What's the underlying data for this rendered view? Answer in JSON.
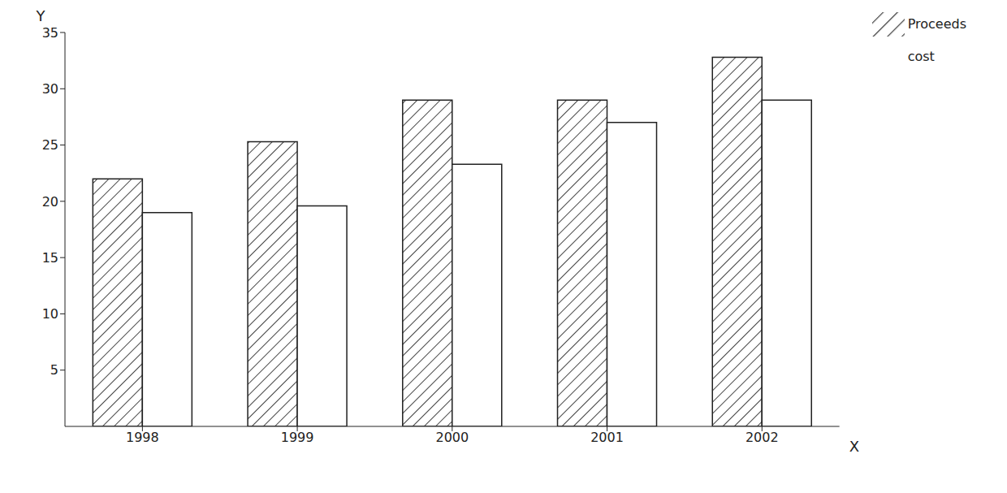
{
  "chart_data": {
    "type": "bar",
    "categories": [
      "1998",
      "1999",
      "2000",
      "2001",
      "2002"
    ],
    "series": [
      {
        "name": "Proceeds",
        "color": "#444444",
        "values": [
          22,
          25.3,
          29,
          29,
          32.8
        ]
      },
      {
        "name": "cost",
        "color": "#ffffff",
        "values": [
          19,
          19.6,
          23.3,
          27,
          29
        ]
      }
    ],
    "x_label": "X",
    "y_label": "Y",
    "ylim": [
      0,
      35
    ],
    "yticks": [
      5,
      10,
      15,
      20,
      25,
      30,
      35
    ],
    "legend": "upper right",
    "grid": false
  }
}
